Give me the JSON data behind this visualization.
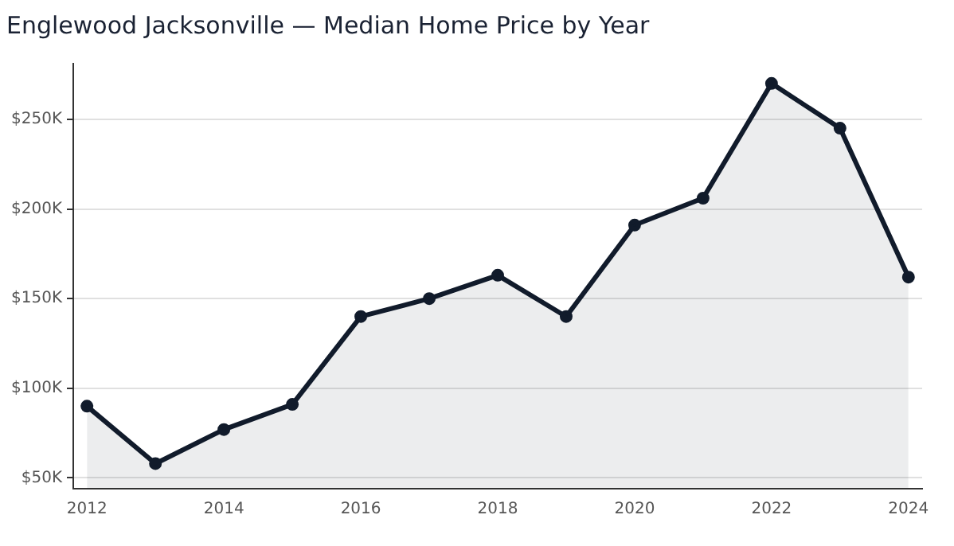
{
  "chart_data": {
    "type": "area",
    "title": "Englewood Jacksonville — Median Home Price by Year",
    "x": [
      2012,
      2013,
      2014,
      2015,
      2016,
      2017,
      2018,
      2019,
      2020,
      2021,
      2022,
      2023,
      2024
    ],
    "series": [
      {
        "color": "#111b2b",
        "values": [
          90,
          58,
          77,
          91,
          140,
          150,
          163,
          140,
          191,
          206,
          270,
          245,
          162
        ]
      }
    ],
    "xlim": [
      2011.8,
      2024.2
    ],
    "xticks": [
      2012,
      2014,
      2016,
      2018,
      2020,
      2022,
      2024
    ],
    "ylim": [
      44,
      281
    ],
    "yticks": [
      {
        "value": 50,
        "label": "$50K"
      },
      {
        "value": 100,
        "label": "$100K"
      },
      {
        "value": 150,
        "label": "$150K"
      },
      {
        "value": 200,
        "label": "$200K"
      },
      {
        "value": 250,
        "label": "$250K"
      }
    ],
    "grid": "y",
    "marker": "circle",
    "line_style": "solid"
  }
}
